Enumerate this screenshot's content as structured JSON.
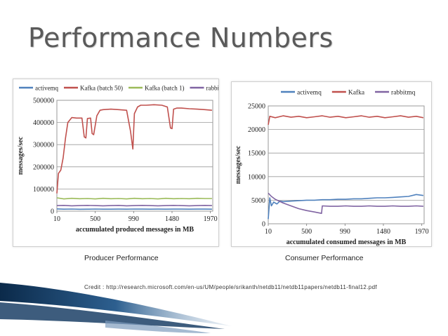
{
  "slide": {
    "title": "Performance Numbers",
    "producer_caption": "Producer Performance",
    "consumer_caption": "Consumer Performance",
    "credit": "Credit : http://research.microsoft.com/en-us/UM/people/srikanth/netdb11/netdb11papers/netdb11-final12.pdf"
  },
  "chart_data": [
    {
      "type": "line",
      "xlabel": "accumulated produced messages in MB",
      "ylabel": "messages/sec",
      "x_ticks": [
        10,
        500,
        990,
        1480,
        1970
      ],
      "y_ticks": [
        0,
        100000,
        200000,
        300000,
        400000,
        500000
      ],
      "y_tick_labels": [
        "0",
        "100000",
        "200000",
        "300000",
        "400000",
        "500000"
      ],
      "xlim": [
        10,
        2000
      ],
      "ylim": [
        0,
        500000
      ],
      "grid": true,
      "legend": "top",
      "series": [
        {
          "name": "activemq",
          "color": "#4f81bd",
          "x": [
            10,
            100,
            200,
            300,
            400,
            500,
            600,
            700,
            800,
            900,
            1000,
            1100,
            1200,
            1300,
            1400,
            1500,
            1600,
            1700,
            1800,
            1900,
            1990
          ],
          "y": [
            10000,
            9000,
            9500,
            8500,
            9000,
            9500,
            9000,
            8800,
            9200,
            9000,
            9400,
            9100,
            8900,
            9200,
            9000,
            9300,
            9100,
            9000,
            9200,
            9100,
            9000
          ]
        },
        {
          "name": "Kafka (batch 50)",
          "color": "#c0504d",
          "x": [
            10,
            30,
            60,
            90,
            120,
            150,
            200,
            260,
            330,
            360,
            380,
            400,
            440,
            460,
            480,
            520,
            560,
            600,
            700,
            800,
            900,
            950,
            980,
            1000,
            1040,
            1080,
            1150,
            1250,
            1350,
            1420,
            1460,
            1480,
            1500,
            1540,
            1600,
            1700,
            1800,
            1900,
            1990
          ],
          "y": [
            80000,
            170000,
            185000,
            240000,
            330000,
            400000,
            422000,
            420000,
            420000,
            335000,
            330000,
            418000,
            420000,
            350000,
            345000,
            430000,
            455000,
            458000,
            460000,
            458000,
            455000,
            360000,
            280000,
            440000,
            470000,
            478000,
            478000,
            480000,
            478000,
            470000,
            375000,
            372000,
            460000,
            465000,
            465000,
            462000,
            460000,
            458000,
            455000
          ]
        },
        {
          "name": "Kafka (batch 1)",
          "color": "#9bbb59",
          "x": [
            10,
            100,
            200,
            300,
            400,
            500,
            600,
            700,
            800,
            900,
            1000,
            1100,
            1200,
            1300,
            1400,
            1500,
            1600,
            1700,
            1800,
            1900,
            1990
          ],
          "y": [
            60000,
            55000,
            58000,
            56000,
            57000,
            55000,
            58000,
            56000,
            57000,
            55000,
            58000,
            56000,
            57000,
            55000,
            58000,
            56000,
            57000,
            56000,
            58000,
            57000,
            57000
          ]
        },
        {
          "name": "rabbitmq",
          "color": "#8064a2",
          "x": [
            10,
            100,
            200,
            300,
            400,
            500,
            600,
            700,
            800,
            900,
            1000,
            1100,
            1200,
            1300,
            1400,
            1500,
            1600,
            1700,
            1800,
            1900,
            1990
          ],
          "y": [
            25000,
            26000,
            24000,
            25000,
            26000,
            25000,
            24000,
            25000,
            26000,
            24000,
            25000,
            26000,
            25000,
            24000,
            25000,
            26000,
            25000,
            24000,
            25000,
            26000,
            25000
          ]
        }
      ]
    },
    {
      "type": "line",
      "xlabel": "accumulated consumed messages in MB",
      "ylabel": "messages/sec",
      "x_ticks": [
        10,
        500,
        990,
        1480,
        1970
      ],
      "y_ticks": [
        0,
        5000,
        10000,
        15000,
        20000,
        25000
      ],
      "y_tick_labels": [
        "0",
        "5000",
        "10000",
        "15000",
        "20000",
        "25000"
      ],
      "xlim": [
        10,
        2000
      ],
      "ylim": [
        0,
        25000
      ],
      "grid": true,
      "legend": "top",
      "series": [
        {
          "name": "activemq",
          "color": "#4f81bd",
          "x": [
            10,
            30,
            50,
            80,
            120,
            160,
            200,
            300,
            400,
            500,
            600,
            700,
            800,
            900,
            1000,
            1100,
            1200,
            1300,
            1400,
            1500,
            1600,
            1700,
            1800,
            1900,
            1990
          ],
          "y": [
            1000,
            5500,
            3800,
            4600,
            4200,
            4800,
            4700,
            4800,
            4900,
            5000,
            5000,
            5100,
            5100,
            5200,
            5200,
            5300,
            5300,
            5400,
            5500,
            5500,
            5600,
            5700,
            5800,
            6200,
            6000
          ]
        },
        {
          "name": "Kafka",
          "color": "#c0504d",
          "x": [
            10,
            30,
            100,
            200,
            300,
            400,
            500,
            600,
            700,
            800,
            900,
            1000,
            1100,
            1200,
            1300,
            1400,
            1500,
            1600,
            1700,
            1800,
            1900,
            1990
          ],
          "y": [
            21000,
            22800,
            22500,
            22900,
            22600,
            22800,
            22500,
            22700,
            22900,
            22600,
            22800,
            22500,
            22700,
            22900,
            22600,
            22800,
            22500,
            22700,
            22900,
            22600,
            22800,
            22500
          ]
        },
        {
          "name": "rabbitmq",
          "color": "#8064a2",
          "x": [
            10,
            50,
            100,
            200,
            300,
            400,
            500,
            600,
            690,
            700,
            800,
            900,
            1000,
            1100,
            1200,
            1300,
            1400,
            1500,
            1600,
            1700,
            1800,
            1900,
            1990
          ],
          "y": [
            6500,
            5800,
            5200,
            4400,
            3800,
            3200,
            2800,
            2500,
            2200,
            3800,
            3700,
            3700,
            3800,
            3700,
            3700,
            3800,
            3700,
            3700,
            3800,
            3700,
            3700,
            3800,
            3700
          ]
        }
      ]
    }
  ]
}
